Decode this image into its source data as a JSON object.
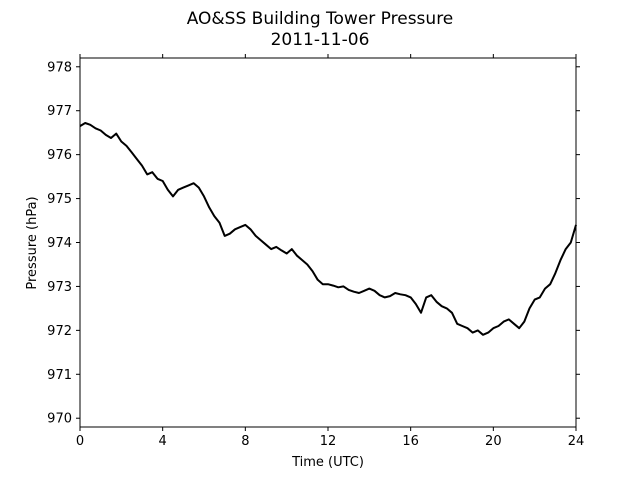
{
  "chart_data": {
    "type": "line",
    "title": "AO&SS Building Tower Pressure",
    "subtitle": "2011-11-06",
    "xlabel": "Time (UTC)",
    "ylabel": "Pressure (hPa)",
    "xlim": [
      0,
      24
    ],
    "ylim": [
      969.8,
      978.2
    ],
    "xticks": [
      0,
      4,
      8,
      12,
      16,
      20,
      24
    ],
    "yticks": [
      970,
      971,
      972,
      973,
      974,
      975,
      976,
      977,
      978
    ],
    "grid": false,
    "line_color": "#000000",
    "series": [
      {
        "x": [
          0,
          0.25,
          0.5,
          0.75,
          1.0,
          1.25,
          1.5,
          1.75,
          2.0,
          2.25,
          2.5,
          2.75,
          3.0,
          3.25,
          3.5,
          3.75,
          4.0,
          4.25,
          4.5,
          4.75,
          5.0,
          5.25,
          5.5,
          5.75,
          6.0,
          6.25,
          6.5,
          6.75,
          7.0,
          7.25,
          7.5,
          7.75,
          8.0,
          8.25,
          8.5,
          8.75,
          9.0,
          9.25,
          9.5,
          9.75,
          10.0,
          10.25,
          10.5,
          10.75,
          11.0,
          11.25,
          11.5,
          11.75,
          12.0,
          12.25,
          12.5,
          12.75,
          13.0,
          13.25,
          13.5,
          13.75,
          14.0,
          14.25,
          14.5,
          14.75,
          15.0,
          15.25,
          15.5,
          15.75,
          16.0,
          16.25,
          16.5,
          16.75,
          17.0,
          17.25,
          17.5,
          17.75,
          18.0,
          18.25,
          18.5,
          18.75,
          19.0,
          19.25,
          19.5,
          19.75,
          20.0,
          20.25,
          20.5,
          20.75,
          21.0,
          21.25,
          21.5,
          21.75,
          22.0,
          22.25,
          22.5,
          22.75,
          23.0,
          23.25,
          23.5,
          23.75,
          24.0
        ],
        "y": [
          976.65,
          976.72,
          976.68,
          976.6,
          976.55,
          976.45,
          976.38,
          976.48,
          976.3,
          976.2,
          976.05,
          975.9,
          975.75,
          975.55,
          975.6,
          975.45,
          975.4,
          975.2,
          975.05,
          975.2,
          975.25,
          975.3,
          975.35,
          975.25,
          975.05,
          974.8,
          974.6,
          974.45,
          974.15,
          974.2,
          974.3,
          974.35,
          974.4,
          974.3,
          974.15,
          974.05,
          973.95,
          973.85,
          973.9,
          973.82,
          973.75,
          973.85,
          973.7,
          973.6,
          973.5,
          973.35,
          973.15,
          973.05,
          973.05,
          973.02,
          972.98,
          973.0,
          972.92,
          972.88,
          972.85,
          972.9,
          972.95,
          972.9,
          972.8,
          972.75,
          972.78,
          972.85,
          972.82,
          972.8,
          972.75,
          972.6,
          972.4,
          972.75,
          972.8,
          972.65,
          972.55,
          972.5,
          972.4,
          972.15,
          972.1,
          972.05,
          971.95,
          972.0,
          971.9,
          971.95,
          972.05,
          972.1,
          972.2,
          972.25,
          972.15,
          972.05,
          972.2,
          972.5,
          972.7,
          972.75,
          972.95,
          973.05,
          973.3,
          973.6,
          973.85,
          974.0,
          974.4
        ]
      }
    ]
  }
}
